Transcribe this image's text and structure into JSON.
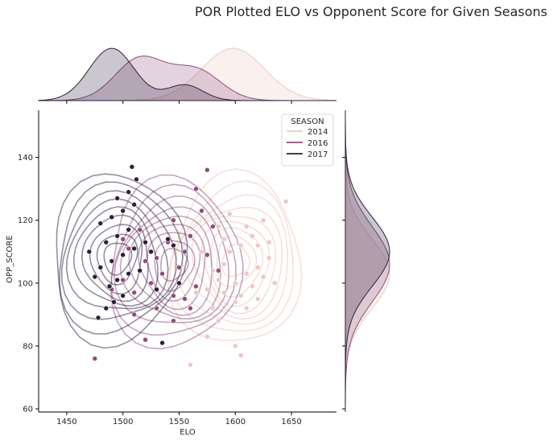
{
  "chart_data": {
    "type": "scatter",
    "subtype": "jointplot-kde",
    "title": "POR Plotted ELO vs Opponent Score for Given Seasons",
    "xlabel": "ELO",
    "ylabel": "OPP_SCORE",
    "xlim": [
      1425,
      1690
    ],
    "ylim": [
      59,
      155
    ],
    "x_ticks": [
      1450,
      1500,
      1550,
      1600,
      1650
    ],
    "y_ticks": [
      60,
      80,
      100,
      120,
      140
    ],
    "legend": {
      "title": "SEASON",
      "placement": "top-right"
    },
    "grid": false,
    "series": [
      {
        "name": "2014",
        "color": "#ecc9c0",
        "kde_center": [
          1600,
          107
        ],
        "x_marginal_peak": 1598,
        "points": [
          [
            1560,
            74
          ],
          [
            1600,
            80
          ],
          [
            1605,
            77
          ],
          [
            1575,
            83
          ],
          [
            1585,
            88
          ],
          [
            1610,
            92
          ],
          [
            1620,
            95
          ],
          [
            1590,
            97
          ],
          [
            1600,
            100
          ],
          [
            1610,
            103
          ],
          [
            1620,
            105
          ],
          [
            1630,
            108
          ],
          [
            1595,
            110
          ],
          [
            1605,
            112
          ],
          [
            1615,
            115
          ],
          [
            1585,
            118
          ],
          [
            1625,
            120
          ],
          [
            1595,
            122
          ],
          [
            1645,
            126
          ],
          [
            1575,
            98
          ],
          [
            1580,
            104
          ],
          [
            1590,
            106
          ],
          [
            1570,
            110
          ],
          [
            1615,
            99
          ],
          [
            1600,
            94
          ],
          [
            1625,
            102
          ],
          [
            1635,
            100
          ],
          [
            1610,
            118
          ],
          [
            1620,
            112
          ],
          [
            1580,
            92
          ],
          [
            1590,
            114
          ],
          [
            1565,
            97
          ],
          [
            1630,
            113
          ],
          [
            1585,
            101
          ],
          [
            1605,
            96
          ]
        ]
      },
      {
        "name": "2016",
        "color": "#8c4e7a",
        "kde_center": [
          1545,
          106
        ],
        "x_marginal_peak": 1515,
        "points": [
          [
            1475,
            76
          ],
          [
            1520,
            82
          ],
          [
            1545,
            88
          ],
          [
            1530,
            92
          ],
          [
            1555,
            95
          ],
          [
            1510,
            97
          ],
          [
            1565,
            99
          ],
          [
            1500,
            101
          ],
          [
            1535,
            103
          ],
          [
            1550,
            105
          ],
          [
            1520,
            107
          ],
          [
            1575,
            109
          ],
          [
            1505,
            111
          ],
          [
            1540,
            113
          ],
          [
            1560,
            115
          ],
          [
            1515,
            117
          ],
          [
            1545,
            120
          ],
          [
            1570,
            123
          ],
          [
            1565,
            130
          ],
          [
            1575,
            136
          ],
          [
            1490,
            98
          ],
          [
            1525,
            100
          ],
          [
            1555,
            110
          ],
          [
            1530,
            108
          ],
          [
            1580,
            118
          ],
          [
            1510,
            90
          ],
          [
            1560,
            92
          ],
          [
            1500,
            114
          ],
          [
            1585,
            104
          ],
          [
            1545,
            96
          ]
        ]
      },
      {
        "name": "2017",
        "color": "#2d1e3e",
        "kde_center": [
          1495,
          108
        ],
        "x_marginal_peak": 1490,
        "points": [
          [
            1478,
            89
          ],
          [
            1485,
            92
          ],
          [
            1492,
            94
          ],
          [
            1500,
            96
          ],
          [
            1488,
            99
          ],
          [
            1495,
            101
          ],
          [
            1505,
            103
          ],
          [
            1480,
            105
          ],
          [
            1490,
            107
          ],
          [
            1500,
            109
          ],
          [
            1510,
            111
          ],
          [
            1485,
            113
          ],
          [
            1495,
            115
          ],
          [
            1505,
            117
          ],
          [
            1480,
            119
          ],
          [
            1490,
            121
          ],
          [
            1500,
            123
          ],
          [
            1510,
            125
          ],
          [
            1495,
            127
          ],
          [
            1505,
            129
          ],
          [
            1508,
            137
          ],
          [
            1512,
            133
          ],
          [
            1520,
            113
          ],
          [
            1525,
            110
          ],
          [
            1530,
            98
          ],
          [
            1470,
            110
          ],
          [
            1475,
            102
          ],
          [
            1515,
            104
          ],
          [
            1540,
            114
          ],
          [
            1535,
            81
          ],
          [
            1550,
            100
          ],
          [
            1545,
            112
          ]
        ]
      }
    ]
  }
}
